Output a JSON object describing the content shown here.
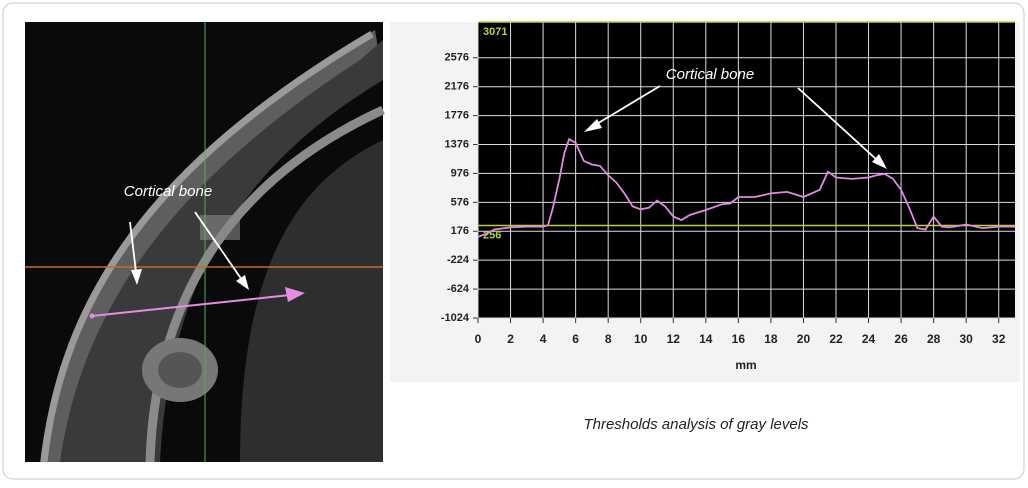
{
  "chart_data": {
    "type": "line",
    "x": [
      0,
      0.5,
      1,
      2,
      3,
      4,
      4.3,
      4.6,
      5,
      5.3,
      5.6,
      6,
      6.5,
      7,
      7.5,
      8,
      8.5,
      9,
      9.5,
      10,
      10.5,
      11,
      11.5,
      12,
      12.5,
      13,
      14,
      15,
      15.5,
      16,
      17,
      18,
      19,
      20,
      21,
      21.5,
      22,
      23,
      24,
      24.5,
      25,
      25.5,
      26,
      26.5,
      27,
      27.5,
      28,
      28.5,
      29,
      30,
      31,
      32,
      33
    ],
    "values": [
      100,
      140,
      200,
      230,
      240,
      240,
      260,
      500,
      900,
      1250,
      1450,
      1400,
      1150,
      1100,
      1080,
      950,
      850,
      700,
      520,
      480,
      500,
      600,
      520,
      380,
      330,
      400,
      470,
      550,
      560,
      650,
      650,
      700,
      720,
      650,
      750,
      1000,
      920,
      900,
      920,
      950,
      970,
      900,
      750,
      500,
      220,
      200,
      380,
      240,
      230,
      270,
      220,
      240,
      240
    ],
    "color": "#e38ae0",
    "xlim": [
      0,
      33
    ],
    "xticks": [
      0,
      2,
      4,
      6,
      8,
      10,
      12,
      14,
      16,
      18,
      20,
      22,
      24,
      26,
      28,
      30,
      32
    ],
    "ylim": [
      -1024,
      3071
    ],
    "yticks": [
      -1024,
      -624,
      -224,
      176,
      576,
      976,
      1376,
      1776,
      2176,
      2576
    ],
    "xlabel": "mm",
    "grid": true,
    "thresholds": [
      {
        "value": 3071,
        "label": "3071"
      },
      {
        "value": 256,
        "label": "256"
      }
    ],
    "threshold_color": "#b5d334",
    "annotation": "Cortical bone"
  },
  "image_annotation": "Cortical bone",
  "caption": "Thresholds analysis of gray levels"
}
